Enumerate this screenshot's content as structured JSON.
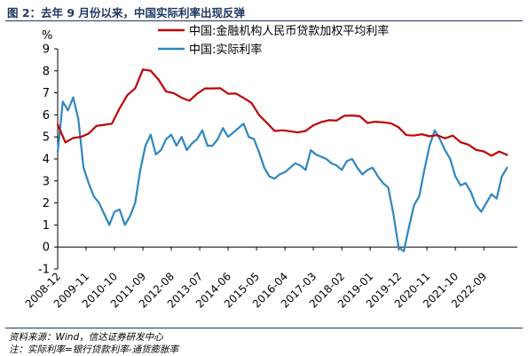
{
  "figure_title": "图 2：去年 9 月份以来，中国实际利率出现反弹",
  "footnotes": {
    "source": "资料来源：Wind，信达证券研发中心",
    "note": "注：实际利率=银行贷款利率-通货膨胀率"
  },
  "chart_data": {
    "type": "line",
    "title": "",
    "y_unit": "%",
    "ylim": [
      -1,
      9
    ],
    "yticks": [
      -1,
      0,
      1,
      2,
      3,
      4,
      5,
      6,
      7,
      8,
      9
    ],
    "xlim": [
      "2008-12",
      "2023-10"
    ],
    "x_tick_labels": [
      "2008-12",
      "2009-11",
      "2010-10",
      "2011-09",
      "2012-08",
      "2013-07",
      "2014-06",
      "2015-05",
      "2016-04",
      "2017-03",
      "2018-02",
      "2019-01",
      "2019-12",
      "2020-11",
      "2021-10",
      "2022-09"
    ],
    "grid": false,
    "legend_position": "top",
    "series": [
      {
        "name": "中国:金融机构人民币贷款加权平均利率",
        "color": "#c00000",
        "x": [
          "2008-12",
          "2009-03",
          "2009-06",
          "2009-09",
          "2009-12",
          "2010-03",
          "2010-06",
          "2010-09",
          "2010-12",
          "2011-03",
          "2011-06",
          "2011-09",
          "2011-12",
          "2012-03",
          "2012-06",
          "2012-09",
          "2012-12",
          "2013-03",
          "2013-06",
          "2013-09",
          "2013-12",
          "2014-03",
          "2014-06",
          "2014-09",
          "2014-12",
          "2015-03",
          "2015-06",
          "2015-09",
          "2015-12",
          "2016-03",
          "2016-06",
          "2016-09",
          "2016-12",
          "2017-03",
          "2017-06",
          "2017-09",
          "2017-12",
          "2018-03",
          "2018-06",
          "2018-09",
          "2018-12",
          "2019-03",
          "2019-06",
          "2019-09",
          "2019-12",
          "2020-03",
          "2020-06",
          "2020-09",
          "2020-12",
          "2021-03",
          "2021-06",
          "2021-09",
          "2021-12",
          "2022-03",
          "2022-06",
          "2022-09",
          "2022-12",
          "2023-03",
          "2023-06"
        ],
        "values": [
          5.56,
          4.75,
          4.95,
          5.0,
          5.15,
          5.5,
          5.55,
          5.6,
          6.3,
          6.9,
          7.2,
          8.06,
          8.01,
          7.61,
          7.06,
          6.98,
          6.78,
          6.64,
          6.96,
          7.2,
          7.2,
          7.21,
          6.96,
          6.97,
          6.77,
          6.55,
          5.99,
          5.64,
          5.27,
          5.3,
          5.26,
          5.2,
          5.27,
          5.53,
          5.67,
          5.76,
          5.74,
          5.96,
          5.97,
          5.94,
          5.63,
          5.69,
          5.66,
          5.62,
          5.44,
          5.08,
          5.06,
          5.12,
          5.03,
          5.08,
          4.93,
          5.06,
          4.76,
          4.65,
          4.41,
          4.34,
          4.14,
          4.34,
          4.18
        ]
      },
      {
        "name": "中国:实际利率",
        "color": "#2e86c1",
        "x": [
          "2008-12",
          "2009-02",
          "2009-04",
          "2009-06",
          "2009-08",
          "2009-10",
          "2009-12",
          "2010-02",
          "2010-04",
          "2010-06",
          "2010-08",
          "2010-10",
          "2010-12",
          "2011-02",
          "2011-04",
          "2011-06",
          "2011-08",
          "2011-10",
          "2011-12",
          "2012-02",
          "2012-04",
          "2012-06",
          "2012-08",
          "2012-10",
          "2012-12",
          "2013-02",
          "2013-04",
          "2013-06",
          "2013-08",
          "2013-10",
          "2013-12",
          "2014-02",
          "2014-04",
          "2014-06",
          "2014-08",
          "2014-10",
          "2014-12",
          "2015-02",
          "2015-04",
          "2015-06",
          "2015-08",
          "2015-10",
          "2015-12",
          "2016-02",
          "2016-04",
          "2016-06",
          "2016-08",
          "2016-10",
          "2016-12",
          "2017-02",
          "2017-04",
          "2017-06",
          "2017-08",
          "2017-10",
          "2017-12",
          "2018-02",
          "2018-04",
          "2018-06",
          "2018-08",
          "2018-10",
          "2018-12",
          "2019-02",
          "2019-04",
          "2019-06",
          "2019-08",
          "2019-10",
          "2019-12",
          "2020-02",
          "2020-04",
          "2020-06",
          "2020-08",
          "2020-10",
          "2020-12",
          "2021-02",
          "2021-04",
          "2021-06",
          "2021-08",
          "2021-10",
          "2021-12",
          "2022-02",
          "2022-04",
          "2022-06",
          "2022-08",
          "2022-10",
          "2022-12",
          "2023-02",
          "2023-04",
          "2023-06"
        ],
        "values": [
          4.3,
          6.6,
          6.2,
          6.8,
          5.8,
          3.6,
          2.9,
          2.3,
          2.0,
          1.5,
          1.0,
          1.6,
          1.7,
          1.0,
          1.4,
          2.0,
          3.5,
          4.6,
          5.1,
          4.2,
          4.4,
          4.9,
          5.1,
          4.6,
          5.0,
          4.4,
          4.7,
          4.9,
          5.3,
          4.6,
          4.6,
          4.9,
          5.4,
          5.0,
          5.2,
          5.4,
          5.6,
          5.0,
          4.9,
          4.3,
          3.6,
          3.2,
          3.1,
          3.3,
          3.4,
          3.6,
          3.8,
          3.7,
          3.5,
          4.4,
          4.2,
          4.1,
          4.0,
          3.8,
          3.7,
          3.5,
          3.9,
          4.0,
          3.6,
          3.3,
          3.5,
          3.6,
          3.2,
          2.9,
          2.7,
          1.5,
          0.0,
          -0.2,
          0.9,
          1.9,
          2.3,
          3.5,
          4.6,
          5.3,
          4.9,
          4.4,
          4.0,
          3.2,
          2.8,
          2.9,
          2.5,
          1.9,
          1.6,
          2.0,
          2.4,
          2.2,
          3.2,
          3.6
        ]
      }
    ]
  }
}
